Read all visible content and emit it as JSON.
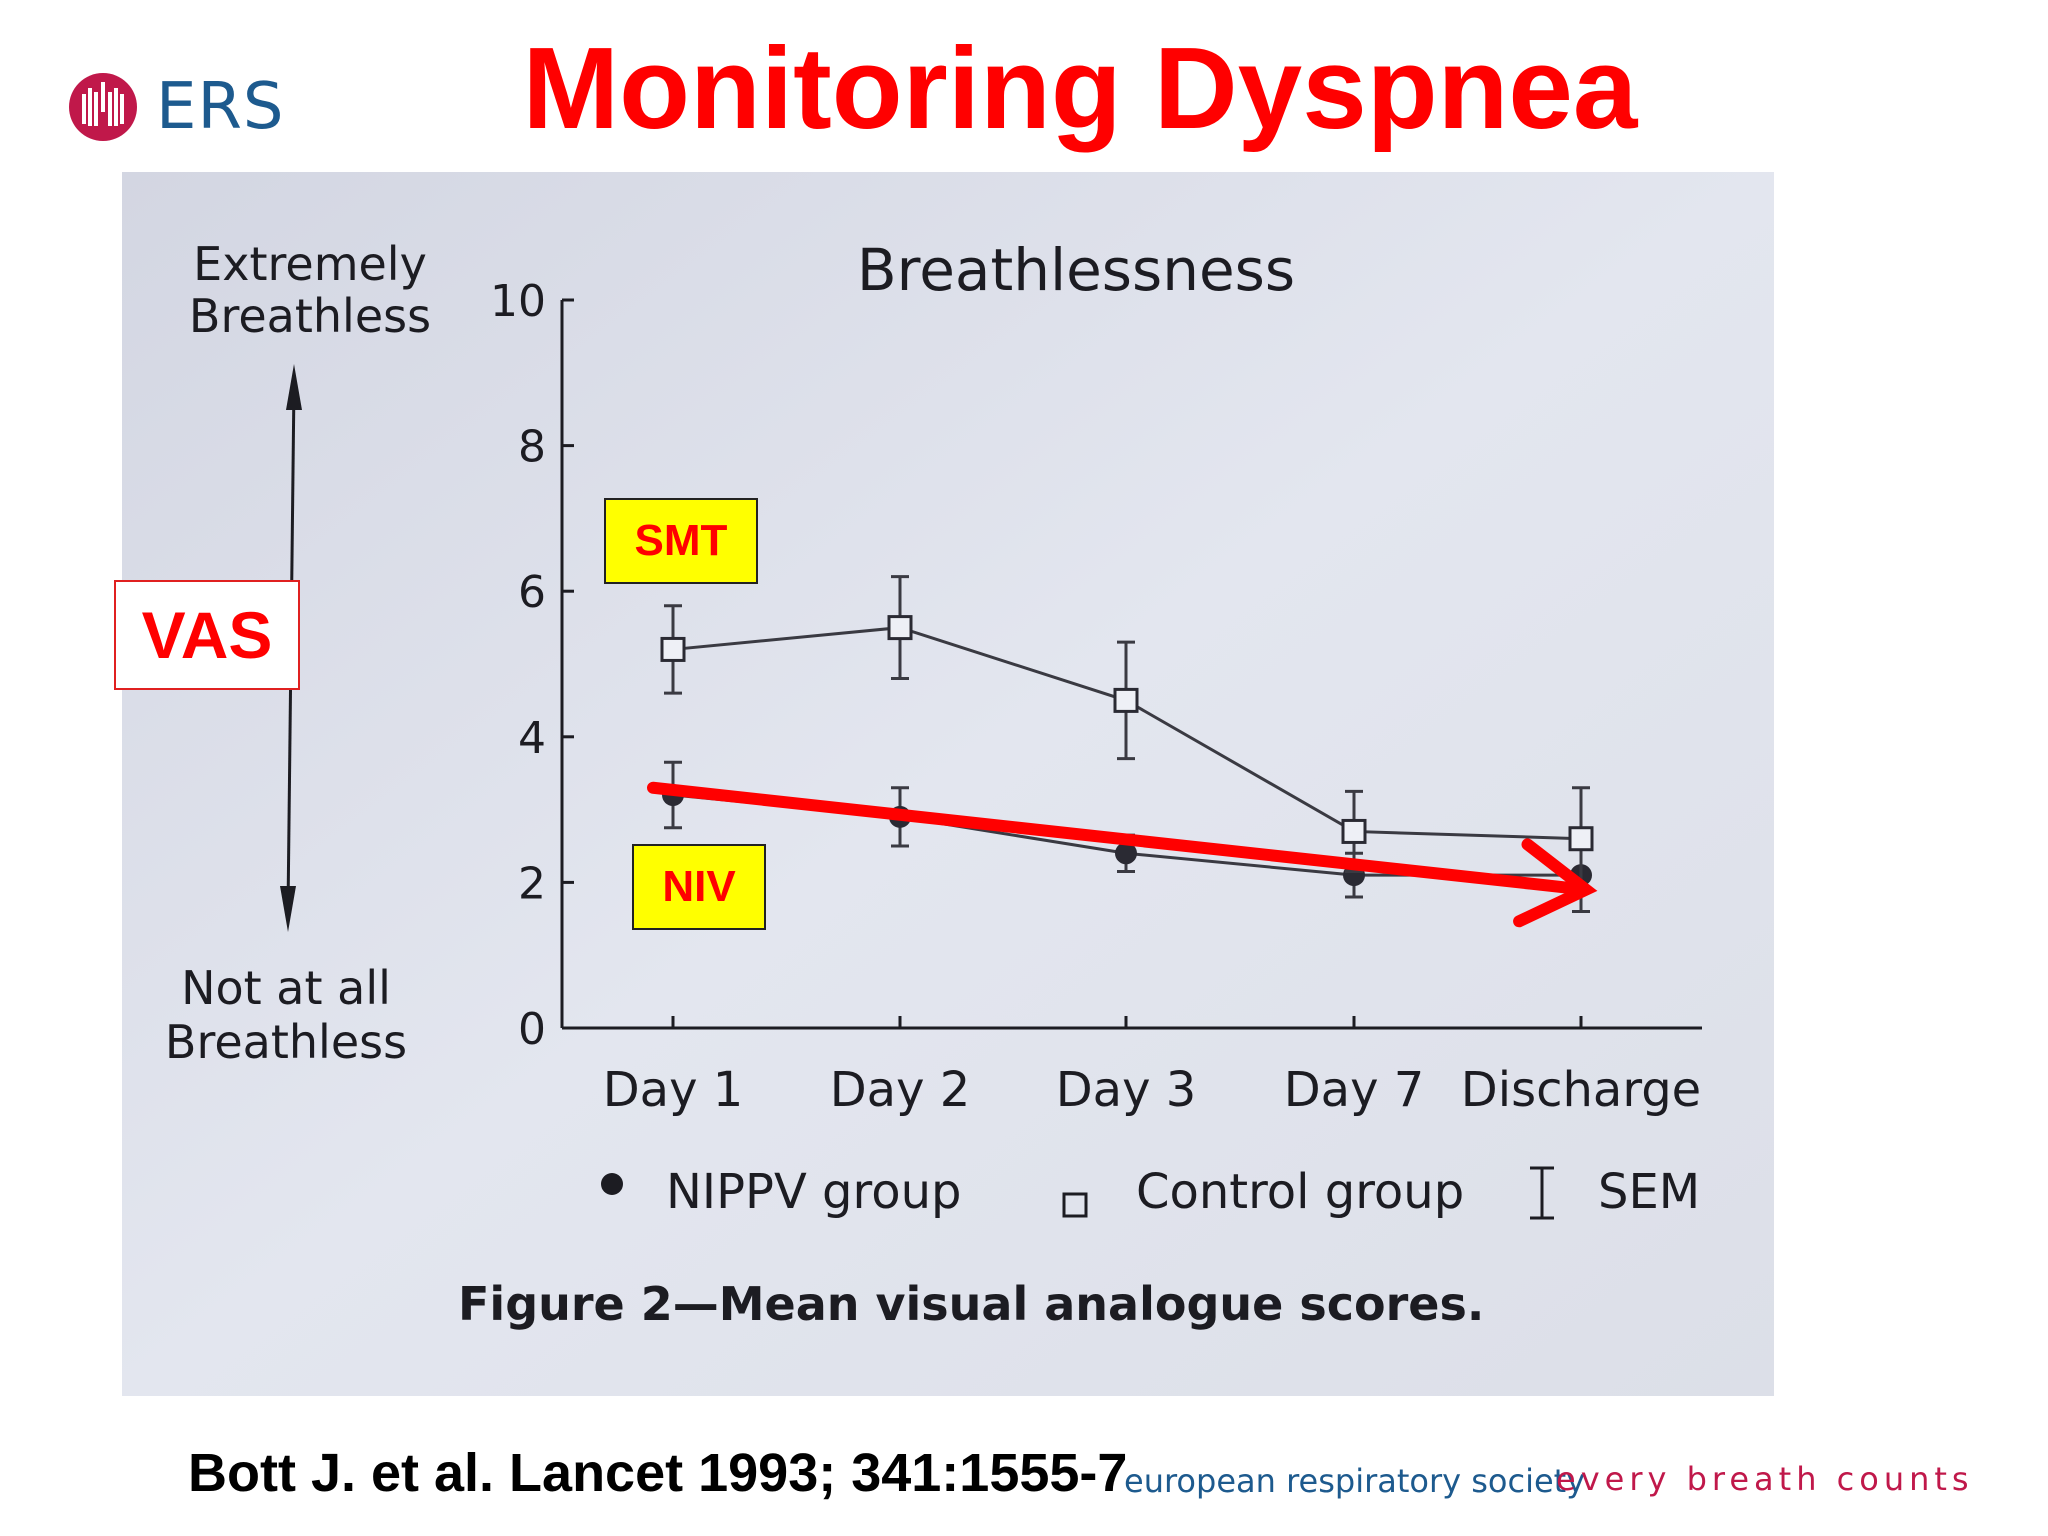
{
  "logo": {
    "text": "ERS",
    "icon": "lungs-icon",
    "color": "#c0184a"
  },
  "slide": {
    "title": "Monitoring Dyspnea"
  },
  "callouts": {
    "vas": "VAS",
    "smt": "SMT",
    "niv": "NIV"
  },
  "citation": "Bott J. et al. Lancet 1993; 341:1555-7",
  "footer": {
    "society": "european respiratory society",
    "tagline": "every breath counts"
  },
  "colors": {
    "title": "#ff0000",
    "accent_arrow": "#ff0000",
    "callout_fill": "#ffff00",
    "ers_blue": "#1d5a8e",
    "ers_red": "#c0184a"
  },
  "chart_data": {
    "type": "line",
    "title": "Breathlessness",
    "caption": "Figure 2—Mean visual analogue scores.",
    "categories": [
      "Day 1",
      "Day 2",
      "Day 3",
      "Day 7",
      "Discharge"
    ],
    "ylim": [
      0,
      10
    ],
    "yticks": [
      0,
      2,
      4,
      6,
      8,
      10
    ],
    "scale_labels": {
      "top": "Extremely Breathless",
      "bottom": "Not at all Breathless"
    },
    "series": [
      {
        "name": "NIPPV group",
        "marker": "filled-circle",
        "values": [
          3.2,
          2.9,
          2.4,
          2.1,
          2.1
        ],
        "sem": [
          0.45,
          0.4,
          0.25,
          0.3,
          0.5
        ]
      },
      {
        "name": "Control group",
        "marker": "open-square",
        "values": [
          5.2,
          5.5,
          4.5,
          2.7,
          2.6
        ],
        "sem": [
          0.6,
          0.7,
          0.8,
          0.55,
          0.7
        ]
      }
    ],
    "legend_sem_label": "SEM",
    "trend_arrow": {
      "from": {
        "category": "Day 1",
        "value": 3.3
      },
      "to": {
        "category": "Discharge",
        "value": 1.9
      }
    }
  }
}
